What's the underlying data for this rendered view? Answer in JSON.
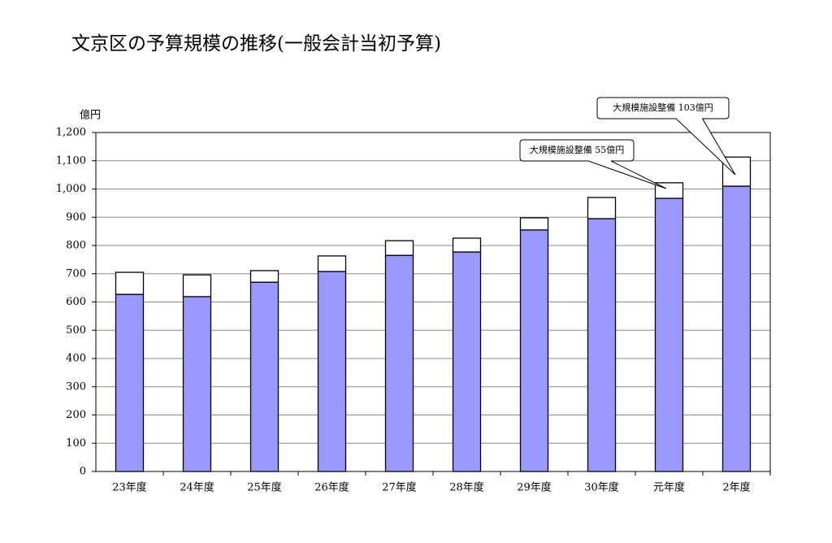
{
  "chart_data": {
    "type": "stacked_bar",
    "title": "文京区の予算規模の推移(一般会計当初予算)",
    "y_label": "億円",
    "categories": [
      "23年度",
      "24年度",
      "25年度",
      "26年度",
      "27年度",
      "28年度",
      "29年度",
      "30年度",
      "元年度",
      "2年度"
    ],
    "series": [
      {
        "color": "#9999ff",
        "values": [
          627,
          619,
          670,
          708,
          765,
          777,
          855,
          895,
          967,
          1010
        ]
      },
      {
        "color": "#ffffff",
        "values": [
          78,
          77,
          41,
          55,
          52,
          49,
          43,
          75,
          55,
          103
        ]
      }
    ],
    "ylim": [
      0,
      1200
    ],
    "yticks": [
      0,
      100,
      200,
      300,
      400,
      500,
      600,
      700,
      800,
      900,
      {
        "value": 1000,
        "label": "1,000"
      },
      {
        "value": 1100,
        "label": "1,100"
      },
      {
        "value": 1200,
        "label": "1,200"
      }
    ],
    "grid": true,
    "annotations": [
      {
        "text": "大規模施設整備 55億円"
      },
      {
        "text": "大規模施設整備 103億円"
      }
    ]
  }
}
